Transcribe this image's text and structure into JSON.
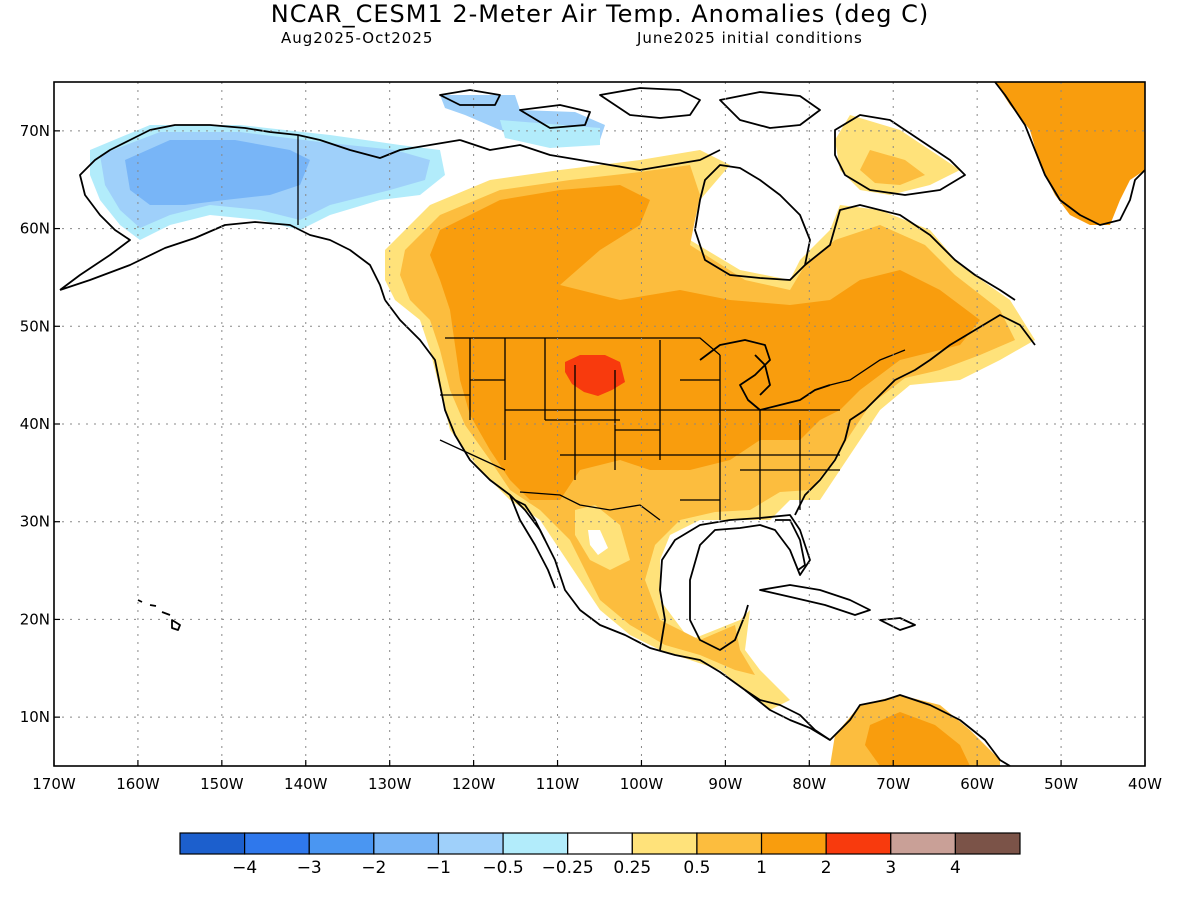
{
  "header": {
    "title": "NCAR_CESM1 2-Meter Air Temp. Anomalies (deg C)",
    "period": "Aug2025-Oct2025",
    "init": "June2025 initial conditions"
  },
  "map": {
    "lat_labels": [
      "70N",
      "60N",
      "50N",
      "40N",
      "30N",
      "20N",
      "10N"
    ],
    "lon_labels": [
      "170W",
      "160W",
      "150W",
      "140W",
      "130W",
      "120W",
      "110W",
      "100W",
      "90W",
      "80W",
      "70W",
      "60W",
      "50W",
      "40W"
    ],
    "lat_range": [
      5,
      75
    ],
    "lon_range": [
      -170,
      -40
    ]
  },
  "colorbar": {
    "labels": [
      "-4",
      "-3",
      "-2",
      "-1",
      "-0.5",
      "-0.25",
      "0.25",
      "0.5",
      "1",
      "2",
      "3",
      "4"
    ],
    "colors": [
      "#1c5fcd",
      "#2f78ec",
      "#4a96f2",
      "#78b5f7",
      "#9fd0fa",
      "#b2ecfb",
      "#ffffff",
      "#ffe27a",
      "#fcbd3e",
      "#f99d0d",
      "#f83a0d",
      "#c9a097",
      "#7b5348"
    ]
  },
  "anomaly_colors": {
    "cold_weak": "#b2ecfb",
    "cold_moderate": "#9fd0fa",
    "cold_strong": "#78b5f7",
    "warm_weak": "#ffe27a",
    "warm_moderate": "#fcbd3e",
    "warm_strong": "#f99d0d",
    "hot": "#f83a0d"
  }
}
